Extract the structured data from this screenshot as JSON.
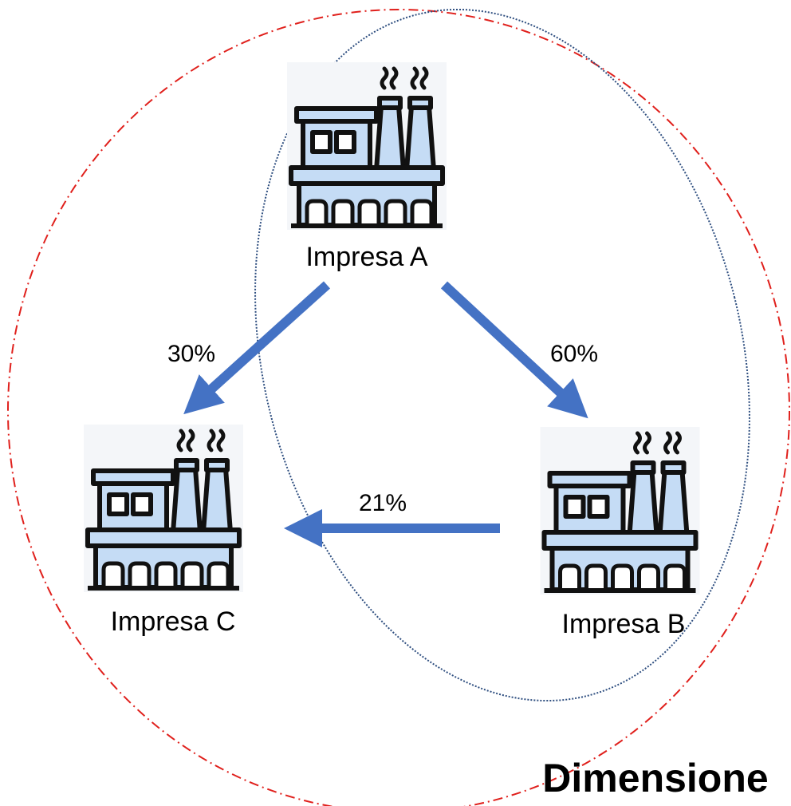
{
  "nodes": [
    {
      "label": "Impresa A"
    },
    {
      "label": "Impresa B"
    },
    {
      "label": "Impresa C"
    }
  ],
  "edges": [
    {
      "from": "Impresa A",
      "to": "Impresa C",
      "label": "30%"
    },
    {
      "from": "Impresa A",
      "to": "Impresa B",
      "label": "60%"
    },
    {
      "from": "Impresa B",
      "to": "Impresa C",
      "label": "21%"
    }
  ],
  "caption": "Dimensione"
}
